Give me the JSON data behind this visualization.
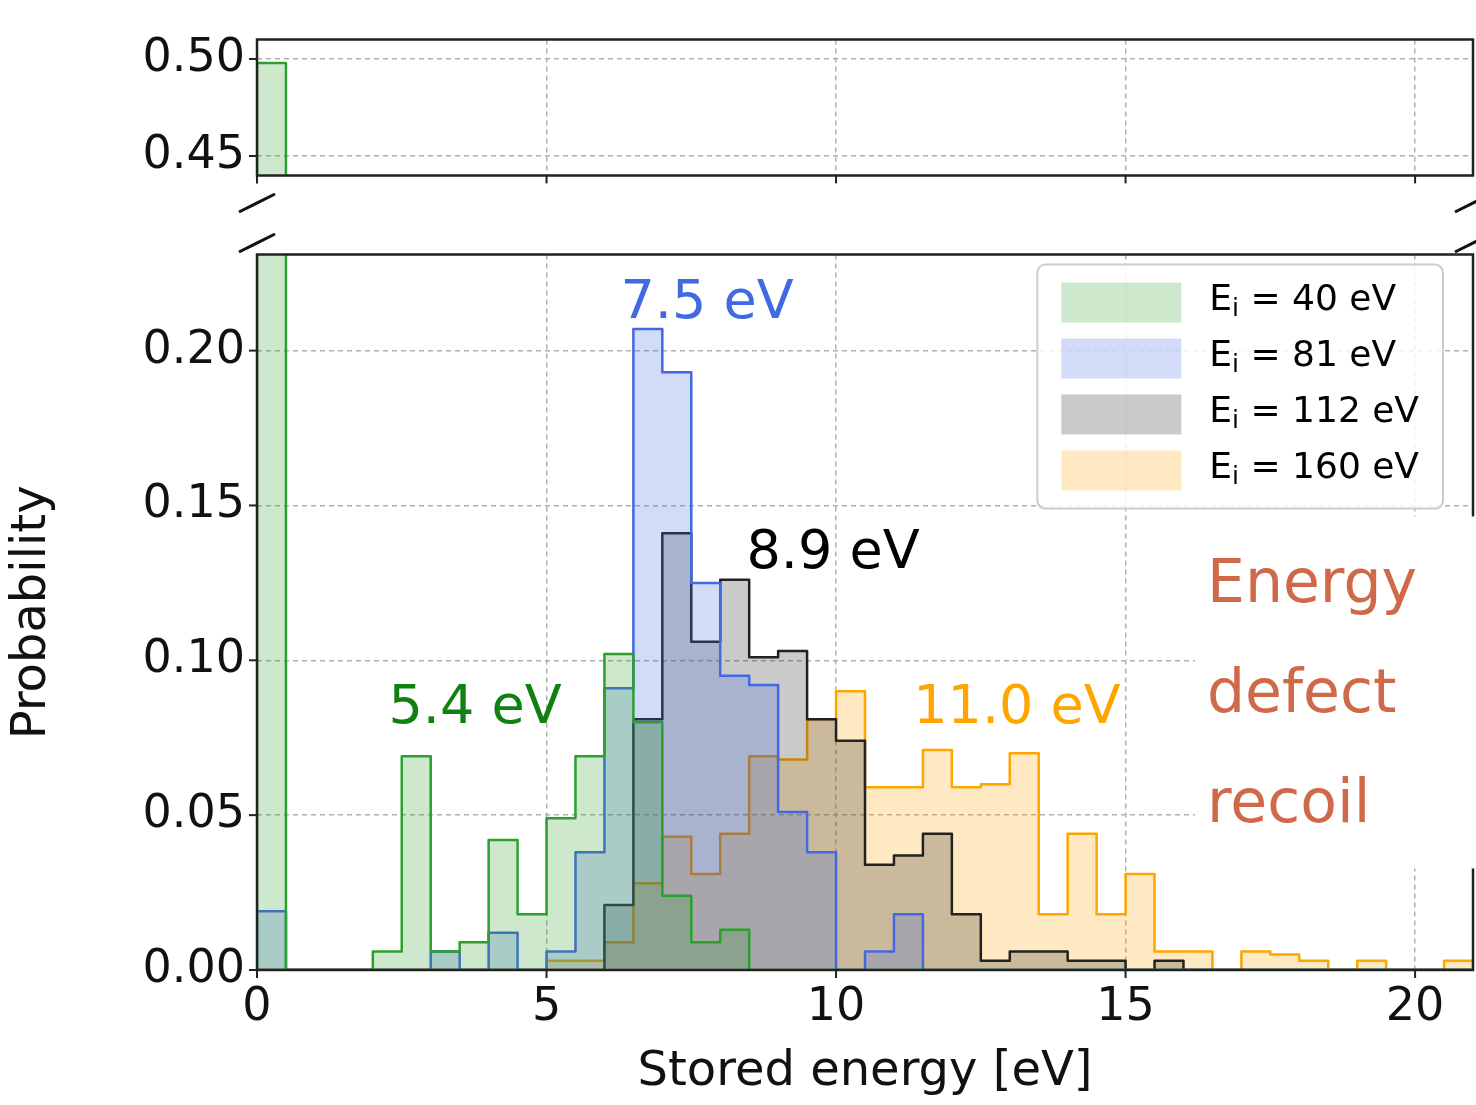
{
  "chart_data": [
    {
      "type": "histogram",
      "xlim": [
        0,
        21
      ],
      "xticks": [
        0,
        5,
        10,
        15,
        20
      ],
      "ylim": [
        0.44,
        0.51
      ],
      "yticks": [
        0.45,
        {
          "value": 0.5,
          "label": "0.50"
        }
      ],
      "grid": true,
      "tick_labels": "y",
      "bins": [
        0,
        0.5
      ],
      "series": [
        {
          "color": "#2ca02c",
          "values": [
            0.498
          ]
        }
      ]
    },
    {
      "type": "histogram",
      "xlabel": "Stored energy [eV]",
      "ylabel": "Probability",
      "xlim": [
        0,
        21
      ],
      "xticks": [
        0,
        5,
        10,
        15,
        20
      ],
      "ylim": [
        0,
        0.231
      ],
      "yticks": [
        {
          "value": 0,
          "label": "0.00"
        },
        {
          "value": 0.05,
          "label": "0.05"
        },
        {
          "value": 0.1,
          "label": "0.10"
        },
        {
          "value": 0.15,
          "label": "0.15"
        },
        {
          "value": 0.2,
          "label": "0.20"
        }
      ],
      "grid": true,
      "legend": "top right",
      "bins": [
        0,
        0.5,
        1,
        1.5,
        2,
        2.5,
        3,
        3.5,
        4,
        4.5,
        5,
        5.5,
        6,
        6.5,
        7,
        7.5,
        8,
        8.5,
        9,
        9.5,
        10,
        10.5,
        11,
        11.5,
        12,
        12.5,
        13,
        13.5,
        14,
        14.5,
        15,
        15.5,
        16,
        16.5,
        17,
        17.5,
        18,
        18.5,
        19,
        19.5,
        20,
        20.5,
        21
      ],
      "series": [
        {
          "name": "E$_{i}$ = 40 eV",
          "color": "#2ca02c",
          "values": [
            null,
            0,
            0,
            0,
            0.006,
            0.069,
            0.006,
            0.009,
            0.042,
            0.018,
            0.049,
            0.069,
            0.102,
            0.08,
            0.024,
            0.009,
            0.013,
            0,
            0,
            0,
            0,
            0,
            0,
            0,
            0,
            0,
            0,
            0,
            0,
            0,
            0,
            0,
            0,
            0,
            0,
            0,
            0,
            0,
            0,
            0,
            0,
            0
          ]
        },
        {
          "name": "E$_{i}$ = 81 eV",
          "color": "#4169e1",
          "values": [
            0.019,
            0,
            0,
            0,
            0,
            0,
            0.006,
            0,
            0.012,
            0,
            0.006,
            0.038,
            0.091,
            0.207,
            0.193,
            0.125,
            0.095,
            0.092,
            0.051,
            0.038,
            0,
            0.006,
            0.018,
            0,
            0,
            0,
            0,
            0,
            0,
            0,
            0,
            0,
            0,
            0,
            0,
            0,
            0,
            0,
            0,
            0,
            0,
            0
          ]
        },
        {
          "name": "E$_{i}$ = 112 eV",
          "color": "#222222",
          "values": [
            0,
            0,
            0,
            0,
            0,
            0,
            0,
            0,
            0,
            0,
            0,
            0,
            0.021,
            0.081,
            0.141,
            0.106,
            0.126,
            0.101,
            0.103,
            0.081,
            0.074,
            0.034,
            0.037,
            0.044,
            0.018,
            0.003,
            0.006,
            0.006,
            0.003,
            0.003,
            0,
            0.003,
            0,
            0,
            0,
            0,
            0,
            0,
            0,
            0,
            0,
            0
          ]
        },
        {
          "name": "E$_{i}$ = 160 eV",
          "color": "#ffa500",
          "values": [
            0,
            0,
            0,
            0,
            0,
            0,
            0,
            0,
            0,
            0,
            0.003,
            0.003,
            0.009,
            0.028,
            0.043,
            0.031,
            0.044,
            0.069,
            0.068,
            0.081,
            0.09,
            0.059,
            0.059,
            0.071,
            0.059,
            0.06,
            0.07,
            0.018,
            0.044,
            0.018,
            0.031,
            0.006,
            0.006,
            0,
            0.006,
            0.005,
            0.003,
            0,
            0.003,
            0,
            0,
            0.003
          ]
        }
      ],
      "annotations": [
        "5.4 eV",
        "7.5 eV",
        "8.9 eV",
        "11.0 eV",
        "Energy defect recoil"
      ]
    }
  ]
}
